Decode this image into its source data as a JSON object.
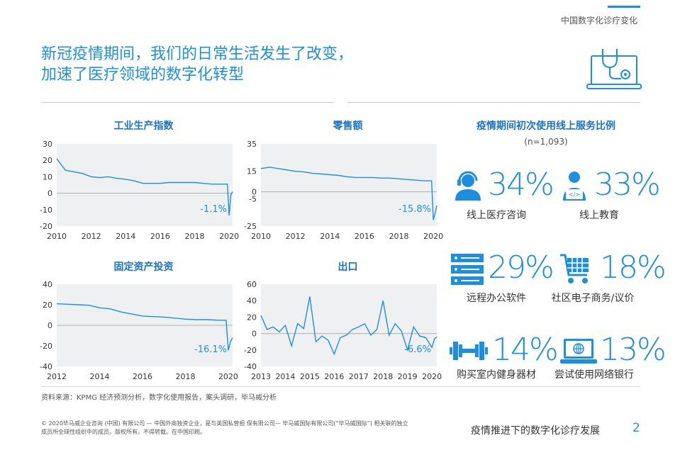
{
  "header": {
    "section": "中国数字化诊疗变化"
  },
  "title": {
    "line1": "新冠疫情期间，我们的日常生活发生了改变，",
    "line2": "加速了医疗领域的数字化转型"
  },
  "chart_data": [
    {
      "type": "line",
      "title": "工业生产指数",
      "x": [
        2010,
        2010.5,
        2011,
        2011.5,
        2012,
        2012.5,
        2013,
        2013.5,
        2014,
        2014.5,
        2015,
        2015.5,
        2016,
        2016.5,
        2017,
        2017.5,
        2018,
        2018.5,
        2019,
        2019.5,
        2019.9,
        2020.0,
        2020.1,
        2020.2
      ],
      "values": [
        21,
        14,
        13,
        12,
        10,
        9.5,
        10,
        9,
        8.5,
        7.5,
        6,
        6,
        6,
        6.5,
        6.5,
        6.5,
        6.5,
        6,
        5.5,
        5.5,
        5.5,
        -13.5,
        -1.1,
        1
      ],
      "ylim": [
        -20,
        30
      ],
      "yticks": [
        "30",
        "20",
        "10",
        "0",
        "-10",
        "-20"
      ],
      "xticks": [
        "2010",
        "2012",
        "2014",
        "2016",
        "2018",
        "2020"
      ],
      "annotation": "-1.1%"
    },
    {
      "type": "line",
      "title": "零售额",
      "x": [
        2010,
        2010.5,
        2011,
        2011.5,
        2012,
        2012.5,
        2013,
        2013.5,
        2014,
        2014.5,
        2015,
        2015.5,
        2016,
        2016.5,
        2017,
        2017.5,
        2018,
        2018.5,
        2019,
        2019.5,
        2019.9,
        2020.0,
        2020.1,
        2020.2
      ],
      "values": [
        17,
        18,
        17,
        16,
        15,
        14.5,
        13.5,
        13,
        12.5,
        12,
        11,
        10.5,
        10.5,
        10.5,
        10,
        10,
        9.5,
        9,
        8.5,
        8,
        8,
        -20.5,
        -15.8,
        -10
      ],
      "ylim": [
        -25,
        35
      ],
      "yticks": [
        "35",
        "15",
        "0",
        "-5",
        "-25"
      ],
      "xticks": [
        "2010",
        "2012",
        "2014",
        "2016",
        "2018",
        "2020"
      ],
      "annotation": "-15.8%"
    },
    {
      "type": "line",
      "title": "固定资产投资",
      "x": [
        2012,
        2012.5,
        2013,
        2013.5,
        2014,
        2014.5,
        2015,
        2015.5,
        2016,
        2016.5,
        2017,
        2017.5,
        2018,
        2018.5,
        2019,
        2019.5,
        2019.9,
        2020.0,
        2020.1,
        2020.2
      ],
      "values": [
        21,
        20.5,
        20,
        19.5,
        17,
        16,
        13,
        11,
        9,
        8.5,
        8,
        7,
        6,
        5.5,
        5.5,
        5,
        5,
        -24.5,
        -16.1,
        -12
      ],
      "ylim": [
        -40,
        40
      ],
      "yticks": [
        "40",
        "20",
        "0",
        "-20",
        "-40"
      ],
      "xticks": [
        "2012",
        "2014",
        "2016",
        "2018",
        "2020"
      ],
      "annotation": "-16.1%"
    },
    {
      "type": "line",
      "title": "出口",
      "x": [
        2013,
        2013.25,
        2013.5,
        2013.75,
        2014,
        2014.25,
        2014.5,
        2014.75,
        2015,
        2015.25,
        2015.5,
        2015.75,
        2016,
        2016.25,
        2016.5,
        2016.75,
        2017,
        2017.25,
        2017.5,
        2017.75,
        2018,
        2018.25,
        2018.5,
        2018.75,
        2019,
        2019.25,
        2019.5,
        2019.75,
        2020,
        2020.1,
        2020.2
      ],
      "values": [
        22,
        5,
        8,
        2,
        10,
        -15,
        12,
        6,
        45,
        -10,
        -3,
        -8,
        -25,
        -5,
        -2,
        5,
        8,
        12,
        -2,
        5,
        40,
        -2,
        12,
        3,
        -20,
        8,
        -3,
        -5,
        -17,
        -6.6,
        -4
      ],
      "ylim": [
        -40,
        60
      ],
      "yticks": [
        "60",
        "40",
        "20",
        "0",
        "-20",
        "-40"
      ],
      "xticks": [
        "2013",
        "2014",
        "2015",
        "2016",
        "2017",
        "2018",
        "2019",
        "2020"
      ],
      "annotation": "-6.6%"
    }
  ],
  "services": {
    "title": "疫情期间初次使用线上服务比例",
    "sample": "(n=1,093)",
    "items": [
      {
        "pct": "34%",
        "label": "线上医疗咨询",
        "icon": "headset-doctor-icon"
      },
      {
        "pct": "33%",
        "label": "线上教育",
        "icon": "online-education-icon"
      },
      {
        "pct": "29%",
        "label": "远程办公软件",
        "icon": "server-icon"
      },
      {
        "pct": "18%",
        "label": "社区电子商务/议价",
        "icon": "shopping-cart-icon"
      },
      {
        "pct": "14%",
        "label": "购买室内健身器材",
        "icon": "dumbbell-icon"
      },
      {
        "pct": "13%",
        "label": "尝试使用网络银行",
        "icon": "laptop-globe-icon"
      }
    ]
  },
  "footer": {
    "source": "资料来源：KPMG 经济预测分析，数字化使用报告，案头调研，毕马威分析",
    "copyright1": "© 2020毕马威企业咨询 (中国) 有限公司 — 中国外商独资企业，是与英国私营担 保有限公司— 毕马威国际有限公司(“毕马威国际”) 相关联的独立",
    "copyright2": "成员所全球性组织中的成员。版权所有，不得转载。在中国印刷。",
    "doc_title": "疫情推进下的数字化诊疗发展",
    "page": "2"
  },
  "colors": {
    "accent": "#1e8fe0",
    "plot_bg": "#eef0f2"
  }
}
